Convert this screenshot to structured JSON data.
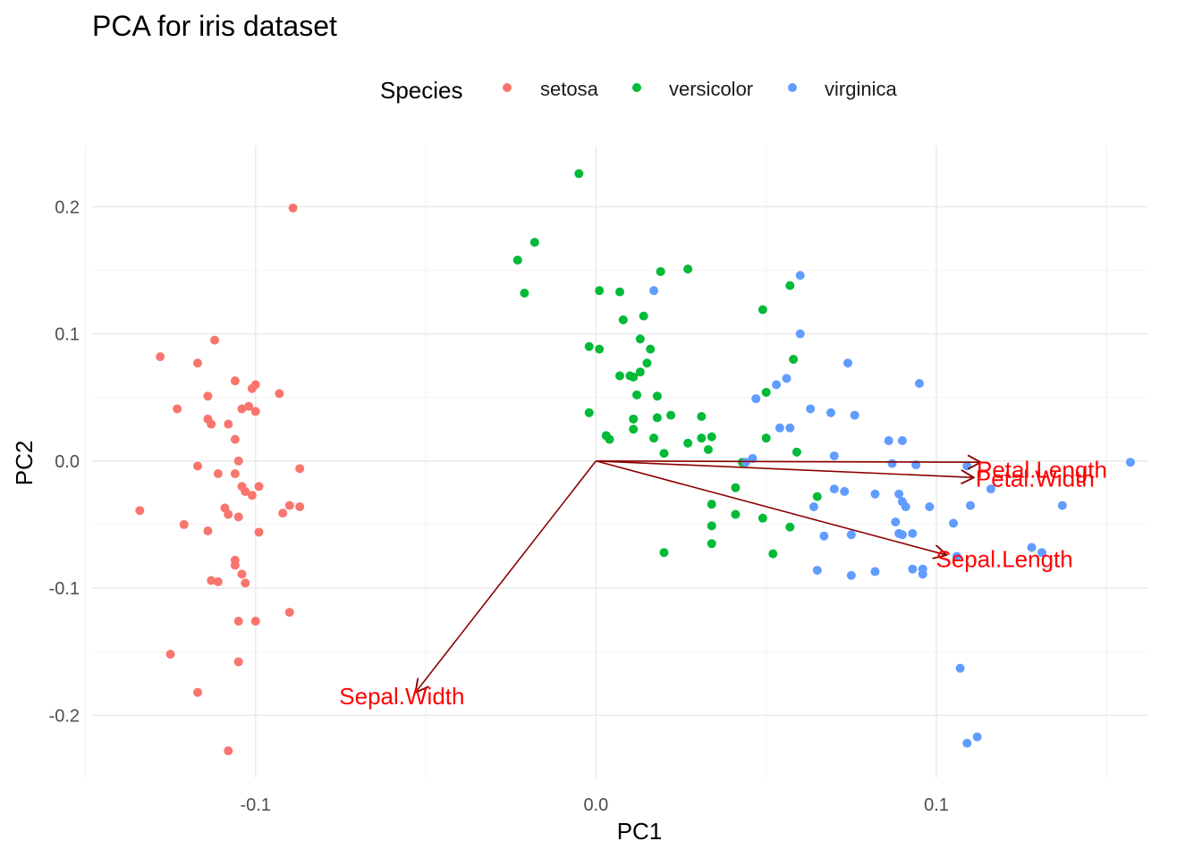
{
  "chart_data": {
    "type": "scatter",
    "title": "PCA for iris dataset",
    "xlabel": "PC1",
    "ylabel": "PC2",
    "xlim": [
      -0.148,
      0.162
    ],
    "ylim": [
      -0.249,
      0.248
    ],
    "x_ticks": [
      {
        "value": -0.1,
        "label": "-0.1"
      },
      {
        "value": 0.0,
        "label": "0.0"
      },
      {
        "value": 0.1,
        "label": "0.1"
      }
    ],
    "y_ticks": [
      {
        "value": 0.2,
        "label": "0.2"
      },
      {
        "value": 0.1,
        "label": "0.1"
      },
      {
        "value": 0.0,
        "label": "0.0"
      },
      {
        "value": -0.1,
        "label": "-0.1"
      },
      {
        "value": -0.2,
        "label": "-0.2"
      }
    ],
    "x_minor": [
      -0.15,
      -0.05,
      0.05,
      0.15
    ],
    "y_minor": [
      0.15,
      0.05,
      -0.05,
      -0.15
    ],
    "grid": true,
    "legend": {
      "title": "Species",
      "position": "top",
      "entries": [
        {
          "label": "setosa",
          "color": "#F8766D"
        },
        {
          "label": "versicolor",
          "color": "#00BA38"
        },
        {
          "label": "virginica",
          "color": "#619CFF"
        }
      ]
    },
    "series": [
      {
        "name": "setosa",
        "color": "#F8766D",
        "points": [
          [
            -0.089,
            0.199
          ],
          [
            -0.112,
            0.095
          ],
          [
            -0.128,
            0.082
          ],
          [
            -0.117,
            0.077
          ],
          [
            -0.106,
            0.063
          ],
          [
            -0.1,
            0.06
          ],
          [
            -0.101,
            0.057
          ],
          [
            -0.093,
            0.053
          ],
          [
            -0.114,
            0.051
          ],
          [
            -0.123,
            0.041
          ],
          [
            -0.104,
            0.041
          ],
          [
            -0.102,
            0.043
          ],
          [
            -0.1,
            0.039
          ],
          [
            -0.114,
            0.033
          ],
          [
            -0.113,
            0.029
          ],
          [
            -0.108,
            0.029
          ],
          [
            -0.106,
            0.017
          ],
          [
            -0.105,
            0.0
          ],
          [
            -0.117,
            -0.004
          ],
          [
            -0.087,
            -0.006
          ],
          [
            -0.111,
            -0.01
          ],
          [
            -0.106,
            -0.01
          ],
          [
            -0.104,
            -0.02
          ],
          [
            -0.103,
            -0.024
          ],
          [
            -0.099,
            -0.02
          ],
          [
            -0.101,
            -0.027
          ],
          [
            -0.134,
            -0.039
          ],
          [
            -0.109,
            -0.037
          ],
          [
            -0.108,
            -0.042
          ],
          [
            -0.105,
            -0.044
          ],
          [
            -0.092,
            -0.041
          ],
          [
            -0.09,
            -0.035
          ],
          [
            -0.087,
            -0.036
          ],
          [
            -0.121,
            -0.05
          ],
          [
            -0.114,
            -0.055
          ],
          [
            -0.099,
            -0.056
          ],
          [
            -0.106,
            -0.078
          ],
          [
            -0.106,
            -0.082
          ],
          [
            -0.104,
            -0.089
          ],
          [
            -0.103,
            -0.096
          ],
          [
            -0.113,
            -0.094
          ],
          [
            -0.111,
            -0.095
          ],
          [
            -0.1,
            -0.126
          ],
          [
            -0.105,
            -0.126
          ],
          [
            -0.09,
            -0.119
          ],
          [
            -0.125,
            -0.152
          ],
          [
            -0.105,
            -0.158
          ],
          [
            -0.117,
            -0.182
          ],
          [
            -0.108,
            -0.228
          ]
        ]
      },
      {
        "name": "versicolor",
        "color": "#00BA38",
        "points": [
          [
            -0.005,
            0.226
          ],
          [
            -0.018,
            0.172
          ],
          [
            -0.023,
            0.158
          ],
          [
            -0.021,
            0.132
          ],
          [
            0.027,
            0.151
          ],
          [
            0.019,
            0.149
          ],
          [
            0.001,
            0.134
          ],
          [
            0.007,
            0.133
          ],
          [
            0.057,
            0.138
          ],
          [
            0.049,
            0.119
          ],
          [
            0.008,
            0.111
          ],
          [
            0.014,
            0.114
          ],
          [
            -0.002,
            0.09
          ],
          [
            0.001,
            0.088
          ],
          [
            0.013,
            0.096
          ],
          [
            0.016,
            0.088
          ],
          [
            0.015,
            0.077
          ],
          [
            0.01,
            0.067
          ],
          [
            0.013,
            0.07
          ],
          [
            0.058,
            0.08
          ],
          [
            0.007,
            0.067
          ],
          [
            0.011,
            0.066
          ],
          [
            0.012,
            0.052
          ],
          [
            0.018,
            0.051
          ],
          [
            0.05,
            0.054
          ],
          [
            -0.002,
            0.038
          ],
          [
            0.022,
            0.036
          ],
          [
            0.031,
            0.035
          ],
          [
            0.011,
            0.033
          ],
          [
            0.011,
            0.025
          ],
          [
            0.018,
            0.034
          ],
          [
            0.003,
            0.02
          ],
          [
            0.004,
            0.017
          ],
          [
            0.017,
            0.018
          ],
          [
            0.031,
            0.018
          ],
          [
            0.034,
            0.019
          ],
          [
            0.027,
            0.014
          ],
          [
            0.05,
            0.018
          ],
          [
            0.033,
            0.009
          ],
          [
            0.02,
            0.006
          ],
          [
            0.059,
            0.007
          ],
          [
            0.043,
            -0.001
          ],
          [
            0.041,
            -0.021
          ],
          [
            0.065,
            -0.028
          ],
          [
            0.034,
            -0.034
          ],
          [
            0.041,
            -0.042
          ],
          [
            0.049,
            -0.045
          ],
          [
            0.057,
            -0.052
          ],
          [
            0.034,
            -0.051
          ],
          [
            0.034,
            -0.065
          ],
          [
            0.02,
            -0.072
          ],
          [
            0.052,
            -0.073
          ]
        ]
      },
      {
        "name": "virginica",
        "color": "#619CFF",
        "points": [
          [
            0.06,
            0.146
          ],
          [
            0.017,
            0.134
          ],
          [
            0.06,
            0.1
          ],
          [
            0.074,
            0.077
          ],
          [
            0.095,
            0.061
          ],
          [
            0.056,
            0.065
          ],
          [
            0.053,
            0.06
          ],
          [
            0.047,
            0.049
          ],
          [
            0.063,
            0.041
          ],
          [
            0.069,
            0.038
          ],
          [
            0.076,
            0.036
          ],
          [
            0.054,
            0.026
          ],
          [
            0.057,
            0.026
          ],
          [
            0.086,
            0.016
          ],
          [
            0.09,
            0.016
          ],
          [
            0.07,
            0.004
          ],
          [
            0.044,
            -0.001
          ],
          [
            0.046,
            0.002
          ],
          [
            0.087,
            -0.002
          ],
          [
            0.094,
            -0.003
          ],
          [
            0.109,
            -0.004
          ],
          [
            0.157,
            -0.001
          ],
          [
            0.116,
            -0.022
          ],
          [
            0.07,
            -0.022
          ],
          [
            0.073,
            -0.024
          ],
          [
            0.089,
            -0.026
          ],
          [
            0.082,
            -0.026
          ],
          [
            0.09,
            -0.032
          ],
          [
            0.064,
            -0.036
          ],
          [
            0.091,
            -0.036
          ],
          [
            0.098,
            -0.036
          ],
          [
            0.11,
            -0.035
          ],
          [
            0.137,
            -0.035
          ],
          [
            0.088,
            -0.048
          ],
          [
            0.105,
            -0.049
          ],
          [
            0.067,
            -0.059
          ],
          [
            0.075,
            -0.058
          ],
          [
            0.089,
            -0.057
          ],
          [
            0.093,
            -0.057
          ],
          [
            0.09,
            -0.058
          ],
          [
            0.128,
            -0.068
          ],
          [
            0.106,
            -0.075
          ],
          [
            0.131,
            -0.072
          ],
          [
            0.096,
            -0.085
          ],
          [
            0.093,
            -0.085
          ],
          [
            0.082,
            -0.087
          ],
          [
            0.065,
            -0.086
          ],
          [
            0.075,
            -0.09
          ],
          [
            0.096,
            -0.089
          ],
          [
            0.107,
            -0.163
          ],
          [
            0.112,
            -0.217
          ],
          [
            0.109,
            -0.222
          ]
        ]
      }
    ],
    "loadings": {
      "color": "#8B0000",
      "label_color": "#FF0000",
      "vectors": [
        {
          "name": "Petal.Length",
          "x": 0.113,
          "y": -0.001,
          "label_x": 0.131,
          "label_y": -0.007
        },
        {
          "name": "Petal.Width",
          "x": 0.111,
          "y": -0.013,
          "label_x": 0.129,
          "label_y": -0.014
        },
        {
          "name": "Sepal.Length",
          "x": 0.103,
          "y": -0.074,
          "label_x": 0.12,
          "label_y": -0.077
        },
        {
          "name": "Sepal.Width",
          "x": -0.053,
          "y": -0.182,
          "label_x": -0.057,
          "label_y": -0.185
        }
      ]
    }
  }
}
